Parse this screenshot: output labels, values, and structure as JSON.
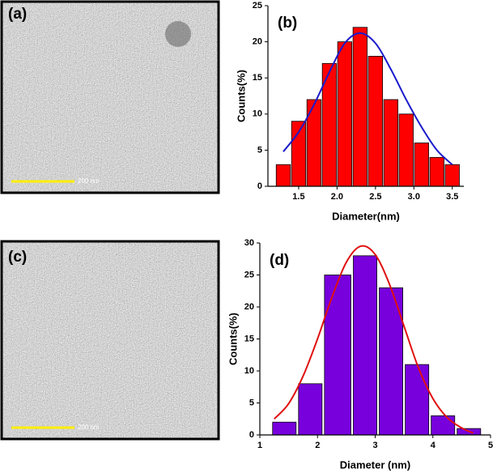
{
  "panels": [
    {
      "label": "(a)",
      "scale_bar": "200 nm"
    },
    {
      "label": "(c)",
      "scale_bar": "200 nm"
    }
  ],
  "chart_data": [
    {
      "type": "histogram",
      "label": "(b)",
      "xlabel": "Diameter(nm)",
      "ylabel": "Counts(%)",
      "bins": [
        1.2,
        1.4,
        1.6,
        1.8,
        2.0,
        2.2,
        2.4,
        2.6,
        2.8,
        3.0,
        3.2,
        3.4,
        3.6
      ],
      "values": [
        3,
        9,
        12,
        17,
        20,
        22,
        18,
        12,
        10,
        6,
        4,
        3
      ],
      "color": "#ff0000",
      "fit": {
        "color": "#1a1acc",
        "x": [
          1.3,
          1.5,
          1.7,
          1.9,
          2.1,
          2.3,
          2.5,
          2.7,
          2.9,
          3.1,
          3.3,
          3.5
        ],
        "values": [
          4.8,
          7.5,
          11.3,
          15.8,
          19.8,
          21.2,
          19.8,
          16.2,
          12,
          8.2,
          5,
          3
        ]
      },
      "xlim": [
        1.1,
        3.65
      ],
      "xticks": [
        1.5,
        {
          "value": 2,
          "label": "2.0"
        },
        2.5,
        {
          "value": 3,
          "label": "3.0"
        },
        3.5
      ],
      "ylim": [
        0,
        25
      ],
      "yticks": [
        0,
        5,
        10,
        15,
        20,
        25
      ]
    },
    {
      "type": "histogram",
      "label": "(d)",
      "xlabel": "Diameter (nm)",
      "ylabel": "Counts(%)",
      "bins": [
        1.2,
        1.65,
        2.1,
        2.6,
        3.05,
        3.5,
        3.95,
        4.4,
        4.85
      ],
      "values": [
        2,
        8,
        25,
        28,
        23,
        11,
        3,
        1
      ],
      "color": "#7700dd",
      "fit": {
        "color": "#e01010",
        "x": [
          1.25,
          1.5,
          1.75,
          2.0,
          2.25,
          2.5,
          2.75,
          3.0,
          3.25,
          3.5,
          3.75,
          4.0,
          4.25,
          4.5,
          4.7
        ],
        "values": [
          2.5,
          4.9,
          9.2,
          15,
          21.5,
          27,
          29.5,
          28.2,
          23.5,
          17,
          10.5,
          5.7,
          2.7,
          1.1,
          0.3
        ]
      },
      "xlim": [
        1,
        5
      ],
      "xticks": [
        1,
        2,
        3,
        4,
        5
      ],
      "ylim": [
        0,
        30
      ],
      "yticks": [
        0,
        5,
        10,
        15,
        20,
        25,
        30
      ]
    }
  ]
}
